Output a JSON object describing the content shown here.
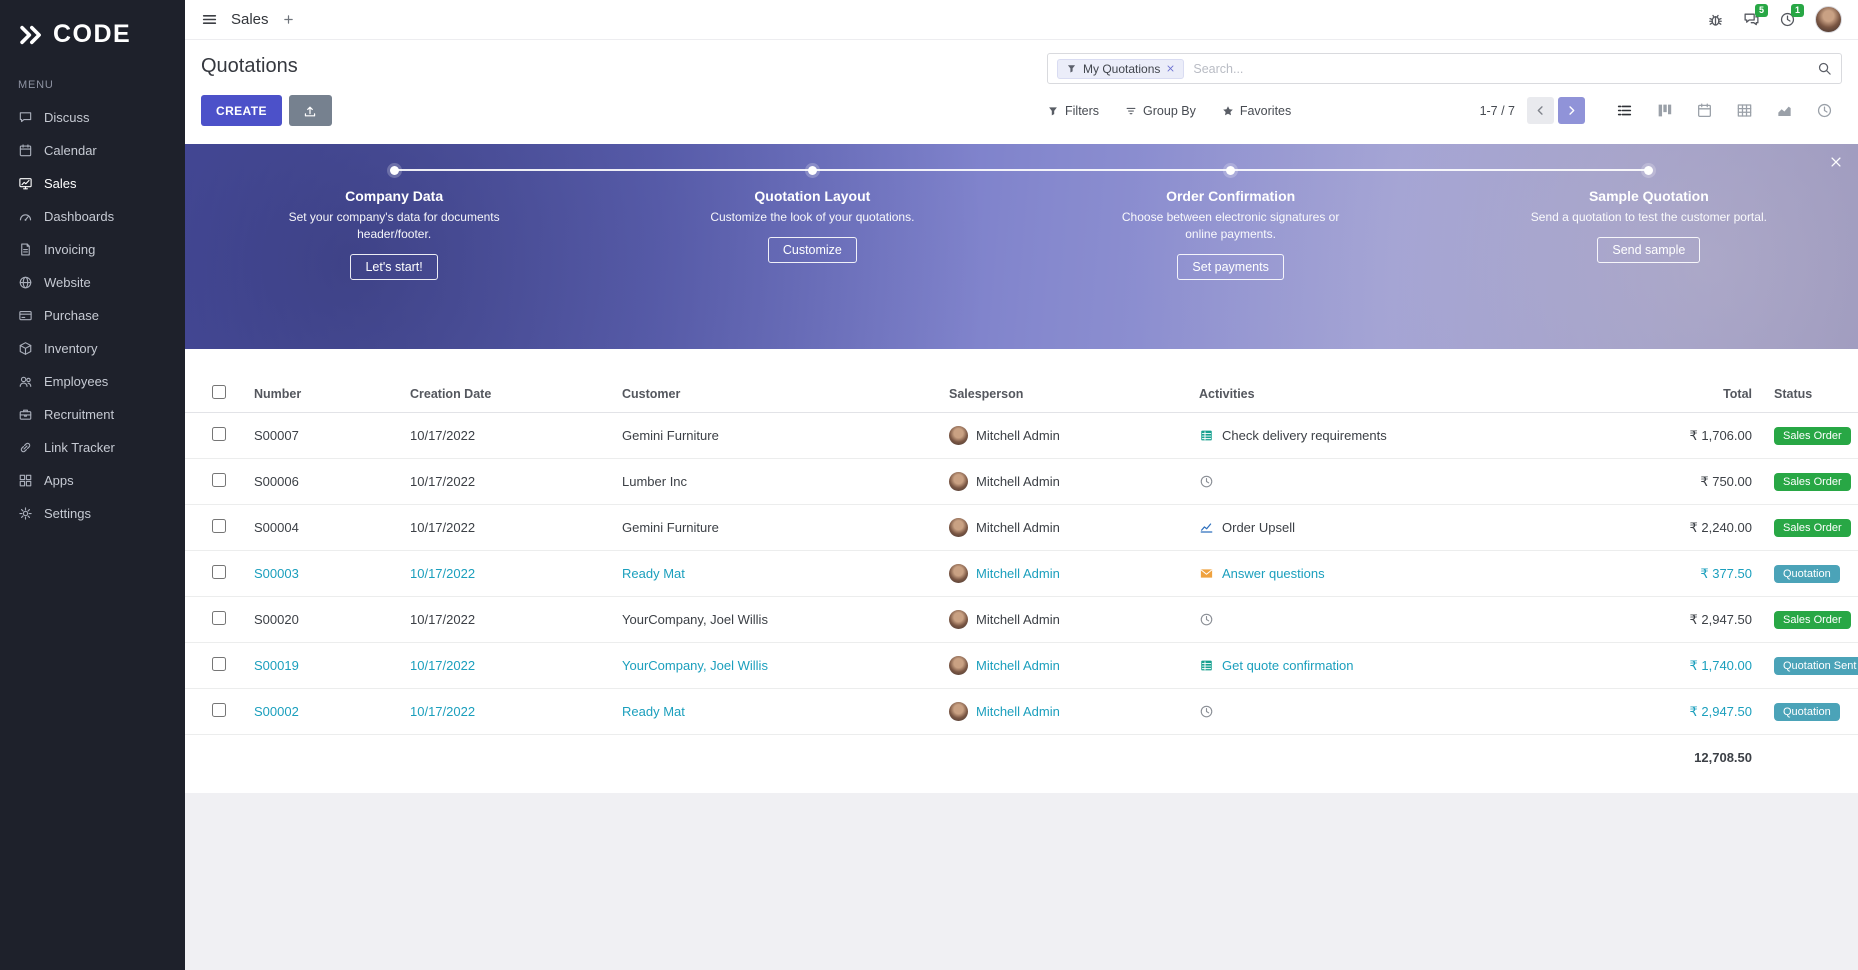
{
  "brand": {
    "logo_text": "CODE",
    "menu_heading": "MENU"
  },
  "topbar": {
    "app_name": "Sales",
    "messages_badge": "5",
    "activities_badge": "1"
  },
  "sidebar": {
    "items": [
      {
        "label": "Discuss",
        "icon": "discuss-icon",
        "active": false
      },
      {
        "label": "Calendar",
        "icon": "calendar-icon",
        "active": false
      },
      {
        "label": "Sales",
        "icon": "sales-icon",
        "active": true
      },
      {
        "label": "Dashboards",
        "icon": "dashboards-icon",
        "active": false
      },
      {
        "label": "Invoicing",
        "icon": "invoicing-icon",
        "active": false
      },
      {
        "label": "Website",
        "icon": "website-icon",
        "active": false
      },
      {
        "label": "Purchase",
        "icon": "purchase-icon",
        "active": false
      },
      {
        "label": "Inventory",
        "icon": "inventory-icon",
        "active": false
      },
      {
        "label": "Employees",
        "icon": "employees-icon",
        "active": false
      },
      {
        "label": "Recruitment",
        "icon": "recruitment-icon",
        "active": false
      },
      {
        "label": "Link Tracker",
        "icon": "link-icon",
        "active": false
      },
      {
        "label": "Apps",
        "icon": "apps-icon",
        "active": false
      },
      {
        "label": "Settings",
        "icon": "settings-icon",
        "active": false
      }
    ]
  },
  "control_panel": {
    "title": "Quotations",
    "search": {
      "chip": "My Quotations",
      "placeholder": "Search..."
    },
    "create_label": "CREATE",
    "menus": [
      {
        "label": "Filters",
        "icon": "filter-icon"
      },
      {
        "label": "Group By",
        "icon": "group-icon"
      },
      {
        "label": "Favorites",
        "icon": "star-icon"
      }
    ],
    "pager_text": "1-7 / 7",
    "views": [
      {
        "name": "list",
        "icon": "list-view-icon",
        "active": true
      },
      {
        "name": "kanban",
        "icon": "kanban-view-icon",
        "active": false
      },
      {
        "name": "calendar",
        "icon": "calendar-view-icon",
        "active": false
      },
      {
        "name": "pivot",
        "icon": "pivot-view-icon",
        "active": false
      },
      {
        "name": "graph",
        "icon": "graph-view-icon",
        "active": false
      },
      {
        "name": "activity",
        "icon": "activity-view-icon",
        "active": false
      }
    ]
  },
  "banner": {
    "steps": [
      {
        "title": "Company Data",
        "description": "Set your company's data for documents header/footer.",
        "button": "Let's start!"
      },
      {
        "title": "Quotation Layout",
        "description": "Customize the look of your quotations.",
        "button": "Customize"
      },
      {
        "title": "Order Confirmation",
        "description": "Choose between electronic signatures or online payments.",
        "button": "Set payments"
      },
      {
        "title": "Sample Quotation",
        "description": "Send a quotation to test the customer portal.",
        "button": "Send sample"
      }
    ]
  },
  "table": {
    "headers": {
      "number": "Number",
      "creation_date": "Creation Date",
      "customer": "Customer",
      "salesperson": "Salesperson",
      "activities": "Activities",
      "total": "Total",
      "status": "Status"
    },
    "rows": [
      {
        "number": "S00007",
        "creation_date": "10/17/2022",
        "customer": "Gemini Furniture",
        "salesperson": "Mitchell Admin",
        "activity": "Check delivery requirements",
        "activity_icon": "spreadsheet-icon",
        "total": "₹ 1,706.00",
        "status": "Sales Order",
        "status_variant": "success",
        "tone": "normal"
      },
      {
        "number": "S00006",
        "creation_date": "10/17/2022",
        "customer": "Lumber Inc",
        "salesperson": "Mitchell Admin",
        "activity": "",
        "activity_icon": "clock-icon",
        "total": "₹ 750.00",
        "status": "Sales Order",
        "status_variant": "success",
        "tone": "normal"
      },
      {
        "number": "S00004",
        "creation_date": "10/17/2022",
        "customer": "Gemini Furniture",
        "salesperson": "Mitchell Admin",
        "activity": "Order Upsell",
        "activity_icon": "chart-icon",
        "total": "₹ 2,240.00",
        "status": "Sales Order",
        "status_variant": "success",
        "tone": "normal"
      },
      {
        "number": "S00003",
        "creation_date": "10/17/2022",
        "customer": "Ready Mat",
        "salesperson": "Mitchell Admin",
        "activity": "Answer questions",
        "activity_icon": "envelope-icon",
        "total": "₹ 377.50",
        "status": "Quotation",
        "status_variant": "info",
        "tone": "info"
      },
      {
        "number": "S00020",
        "creation_date": "10/17/2022",
        "customer": "YourCompany, Joel Willis",
        "salesperson": "Mitchell Admin",
        "activity": "",
        "activity_icon": "clock-icon",
        "total": "₹ 2,947.50",
        "status": "Sales Order",
        "status_variant": "success",
        "tone": "normal"
      },
      {
        "number": "S00019",
        "creation_date": "10/17/2022",
        "customer": "YourCompany, Joel Willis",
        "salesperson": "Mitchell Admin",
        "activity": "Get quote confirmation",
        "activity_icon": "spreadsheet-icon",
        "total": "₹ 1,740.00",
        "status": "Quotation Sent",
        "status_variant": "info",
        "tone": "info"
      },
      {
        "number": "S00002",
        "creation_date": "10/17/2022",
        "customer": "Ready Mat",
        "salesperson": "Mitchell Admin",
        "activity": "",
        "activity_icon": "clock-icon",
        "total": "₹ 2,947.50",
        "status": "Quotation",
        "status_variant": "info",
        "tone": "info"
      }
    ],
    "footer_total": "12,708.50"
  },
  "colors": {
    "primary": "#4c51c9",
    "success": "#28a745",
    "info": "#17a2b8",
    "sidebar_bg": "#1e212b"
  }
}
